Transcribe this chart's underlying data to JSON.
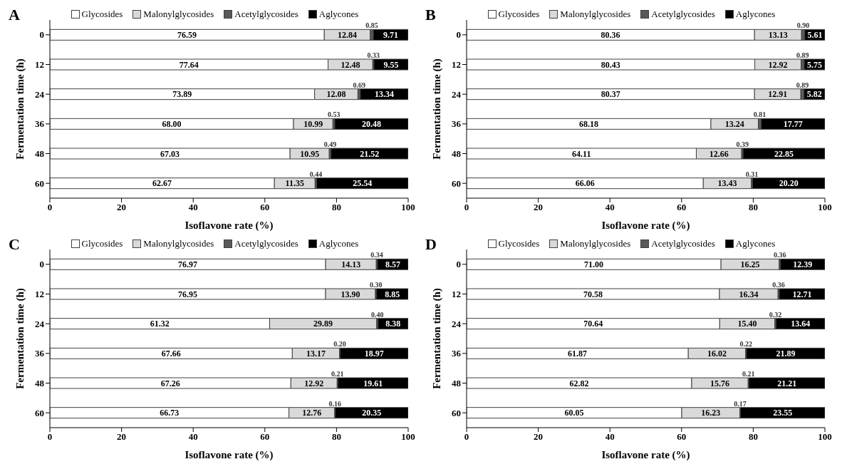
{
  "chart_data": [
    {
      "type": "bar",
      "title": "A",
      "orientation": "horizontal",
      "stacked": true,
      "categories": [
        "0",
        "12",
        "24",
        "36",
        "48",
        "60"
      ],
      "xlabel": "Isoflavone rate (%)",
      "ylabel": "Fermentation time (h)",
      "xlim": [
        0,
        100
      ],
      "xticks": [
        0,
        20,
        40,
        60,
        80,
        100
      ],
      "legend": "top",
      "series": [
        {
          "name": "Glycosides",
          "color": "#ffffff",
          "values": [
            76.59,
            77.64,
            73.89,
            68.0,
            67.03,
            62.67
          ],
          "value_labels": [
            "76.59",
            "77.64",
            "73.89",
            "68.00",
            "67.03",
            "62.67"
          ]
        },
        {
          "name": "Malonylglycosides",
          "color": "#d9d9d9",
          "values": [
            12.84,
            12.48,
            12.08,
            10.99,
            10.95,
            11.35
          ],
          "value_labels": [
            "12.84",
            "12.48",
            "12.08",
            "10.99",
            "10.95",
            "11.35"
          ]
        },
        {
          "name": "Acetylglycosides",
          "color": "#595959",
          "values": [
            0.85,
            0.33,
            0.69,
            0.53,
            0.49,
            0.44
          ],
          "value_labels": [
            "0.85",
            "0.33",
            "0.69",
            "0.53",
            "0.49",
            "0.44"
          ]
        },
        {
          "name": "Aglycones",
          "color": "#000000",
          "values": [
            9.71,
            9.55,
            13.34,
            20.48,
            21.52,
            25.54
          ],
          "value_labels": [
            "9.71",
            "9.55",
            "13.34",
            "20.48",
            "21.52",
            "25.54"
          ]
        }
      ]
    },
    {
      "type": "bar",
      "title": "B",
      "orientation": "horizontal",
      "stacked": true,
      "categories": [
        "0",
        "12",
        "24",
        "36",
        "48",
        "60"
      ],
      "xlabel": "Isoflavone rate (%)",
      "ylabel": "Fermentation time (h)",
      "xlim": [
        0,
        100
      ],
      "xticks": [
        0,
        20,
        40,
        60,
        80,
        100
      ],
      "legend": "top",
      "series": [
        {
          "name": "Glycosides",
          "color": "#ffffff",
          "values": [
            80.36,
            80.43,
            80.37,
            68.18,
            64.11,
            66.06
          ],
          "value_labels": [
            "80.36",
            "80.43",
            "80.37",
            "68.18",
            "64.11",
            "66.06"
          ]
        },
        {
          "name": "Malonylglycosides",
          "color": "#d9d9d9",
          "values": [
            13.13,
            12.92,
            12.91,
            13.24,
            12.66,
            13.43
          ],
          "value_labels": [
            "13.13",
            "12.92",
            "12.91",
            "13.24",
            "12.66",
            "13.43"
          ]
        },
        {
          "name": "Acetylglycosides",
          "color": "#595959",
          "values": [
            0.9,
            0.89,
            0.89,
            0.81,
            0.39,
            0.31
          ],
          "value_labels": [
            "0.90",
            "0.89",
            "0.89",
            "0.81",
            "0.39",
            "0.31"
          ]
        },
        {
          "name": "Aglycones",
          "color": "#000000",
          "values": [
            5.61,
            5.75,
            5.82,
            17.77,
            22.85,
            20.2
          ],
          "value_labels": [
            "5.61",
            "5.75",
            "5.82",
            "17.77",
            "22.85",
            "20.20"
          ]
        }
      ]
    },
    {
      "type": "bar",
      "title": "C",
      "orientation": "horizontal",
      "stacked": true,
      "categories": [
        "0",
        "12",
        "24",
        "36",
        "48",
        "60"
      ],
      "xlabel": "Isoflavone rate (%)",
      "ylabel": "Fermentation time (h)",
      "xlim": [
        0,
        100
      ],
      "xticks": [
        0,
        20,
        40,
        60,
        80,
        100
      ],
      "legend": "top",
      "series": [
        {
          "name": "Glycosides",
          "color": "#ffffff",
          "values": [
            76.97,
            76.95,
            61.32,
            67.66,
            67.26,
            66.73
          ],
          "value_labels": [
            "76.97",
            "76.95",
            "61.32",
            "67.66",
            "67.26",
            "66.73"
          ]
        },
        {
          "name": "Malonylglycosides",
          "color": "#d9d9d9",
          "values": [
            14.13,
            13.9,
            29.89,
            13.17,
            12.92,
            12.76
          ],
          "value_labels": [
            "14.13",
            "13.90",
            "29.89",
            "13.17",
            "12.92",
            "12.76"
          ]
        },
        {
          "name": "Acetylglycosides",
          "color": "#595959",
          "values": [
            0.34,
            0.3,
            0.4,
            0.2,
            0.21,
            0.16
          ],
          "value_labels": [
            "0.34",
            "0.30",
            "0.40",
            "0.20",
            "0.21",
            "0.16"
          ]
        },
        {
          "name": "Aglycones",
          "color": "#000000",
          "values": [
            8.57,
            8.85,
            8.38,
            18.97,
            19.61,
            20.35
          ],
          "value_labels": [
            "8.57",
            "8.85",
            "8.38",
            "18.97",
            "19.61",
            "20.35"
          ]
        }
      ]
    },
    {
      "type": "bar",
      "title": "D",
      "orientation": "horizontal",
      "stacked": true,
      "categories": [
        "0",
        "12",
        "24",
        "36",
        "48",
        "60"
      ],
      "xlabel": "Isoflavone rate (%)",
      "ylabel": "Fermentation time (h)",
      "xlim": [
        0,
        100
      ],
      "xticks": [
        0,
        20,
        40,
        60,
        80,
        100
      ],
      "legend": "top",
      "series": [
        {
          "name": "Glycosides",
          "color": "#ffffff",
          "values": [
            71.0,
            70.58,
            70.64,
            61.87,
            62.82,
            60.05
          ],
          "value_labels": [
            "71.00",
            "70.58",
            "70.64",
            "61.87",
            "62.82",
            "60.05"
          ]
        },
        {
          "name": "Malonylglycosides",
          "color": "#d9d9d9",
          "values": [
            16.25,
            16.34,
            15.4,
            16.02,
            15.76,
            16.23
          ],
          "value_labels": [
            "16.25",
            "16.34",
            "15.40",
            "16.02",
            "15.76",
            "16.23"
          ]
        },
        {
          "name": "Acetylglycosides",
          "color": "#595959",
          "values": [
            0.36,
            0.36,
            0.32,
            0.22,
            0.21,
            0.17
          ],
          "value_labels": [
            "0.36",
            "0.36",
            "0.32",
            "0.22",
            "0.21",
            "0.17"
          ]
        },
        {
          "name": "Aglycones",
          "color": "#000000",
          "values": [
            12.39,
            12.71,
            13.64,
            21.89,
            21.21,
            23.55
          ],
          "value_labels": [
            "12.39",
            "12.71",
            "13.64",
            "21.89",
            "21.21",
            "23.55"
          ]
        }
      ]
    }
  ]
}
